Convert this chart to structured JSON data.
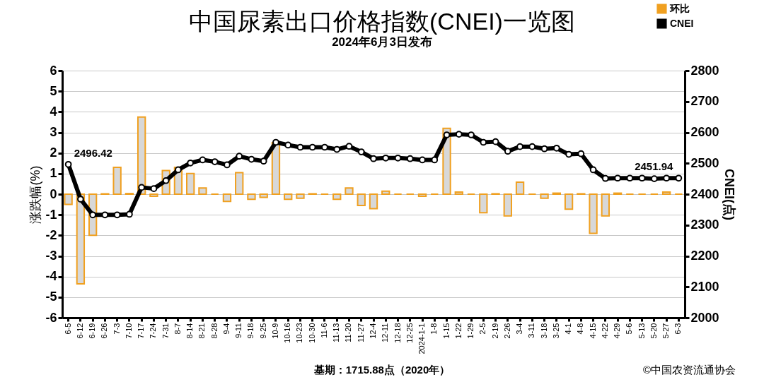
{
  "chart_data": {
    "type": "bar",
    "title": "中国尿素出口价格指数(CNEI)一览图",
    "subtitle": "2024年6月3日发布",
    "ylabel": "涨跌幅(%)",
    "y2label": "CNEI(点)",
    "categories": [
      "6-5",
      "6-12",
      "6-19",
      "6-26",
      "7-3",
      "7-10",
      "7-17",
      "7-24",
      "7-31",
      "8-7",
      "8-14",
      "8-21",
      "8-28",
      "9-4",
      "9-11",
      "9-18",
      "9-25",
      "10-9",
      "10-16",
      "10-23",
      "10-30",
      "11-6",
      "11-13",
      "11-20",
      "11-27",
      "12-4",
      "12-11",
      "12-18",
      "12-25",
      "2024-1-1",
      "1-8",
      "1-15",
      "1-22",
      "1-29",
      "2-5",
      "2-19",
      "2-26",
      "3-4",
      "3-11",
      "3-18",
      "3-25",
      "4-1",
      "4-8",
      "4-15",
      "4-22",
      "4-29",
      "5-6",
      "5-13",
      "5-20",
      "5-27",
      "6-3"
    ],
    "series": [
      {
        "name": "环比",
        "color": "#f0a020",
        "values": [
          -0.5,
          -4.35,
          -2.0,
          0.02,
          1.3,
          0.03,
          3.75,
          -0.1,
          1.15,
          1.3,
          1.0,
          0.3,
          0.0,
          -0.35,
          1.05,
          -0.25,
          -0.15,
          2.5,
          -0.25,
          -0.2,
          0.02,
          0.0,
          -0.25,
          0.3,
          -0.55,
          -0.7,
          0.15,
          0.0,
          0.0,
          -0.1,
          0.0,
          3.2,
          0.1,
          0.0,
          -0.9,
          0.02,
          -1.05,
          0.58,
          0.0,
          -0.2,
          0.05,
          -0.73,
          0.02,
          -1.9,
          -1.05,
          0.05,
          0.0,
          0.0,
          0.0,
          0.1,
          0.0
        ]
      },
      {
        "name": "CNEI",
        "type": "line",
        "axis": "y2",
        "color": "#000000",
        "value_labels": [
          "2496.42",
          null,
          null,
          null,
          null,
          null,
          null,
          null,
          null,
          null,
          null,
          null,
          null,
          null,
          null,
          null,
          null,
          null,
          null,
          null,
          null,
          null,
          null,
          null,
          null,
          null,
          null,
          null,
          null,
          null,
          null,
          null,
          null,
          null,
          null,
          null,
          null,
          null,
          null,
          null,
          null,
          null,
          null,
          null,
          null,
          null,
          null,
          null,
          null,
          null,
          "2451.94"
        ],
        "values": [
          2496.42,
          2384,
          2333,
          2333,
          2333,
          2335,
          2422,
          2418,
          2444,
          2479,
          2501,
          2511,
          2505,
          2495,
          2523,
          2513,
          2507,
          2568,
          2559,
          2552,
          2552,
          2552,
          2545,
          2555,
          2537,
          2515,
          2517,
          2517,
          2515,
          2511,
          2511,
          2592,
          2594,
          2592,
          2568,
          2570,
          2539,
          2554,
          2554,
          2547,
          2549,
          2529,
          2531,
          2479,
          2451,
          2452,
          2452,
          2452,
          2450,
          2452,
          2451.94
        ]
      }
    ],
    "ylim": [
      -6,
      6
    ],
    "yticks": [
      -6,
      -5,
      -4,
      -3,
      -2,
      -1,
      0,
      1,
      2,
      3,
      4,
      5,
      6
    ],
    "y2lim": [
      2000,
      2800
    ],
    "y2ticks": [
      2000,
      2100,
      2200,
      2300,
      2400,
      2500,
      2600,
      2700,
      2800
    ],
    "grid": "y",
    "legend": "top right",
    "marker": "circle",
    "line_style": "solid",
    "annotations": [
      "基期：1715.88点（2020年）",
      "©中国农资流通协会"
    ]
  }
}
